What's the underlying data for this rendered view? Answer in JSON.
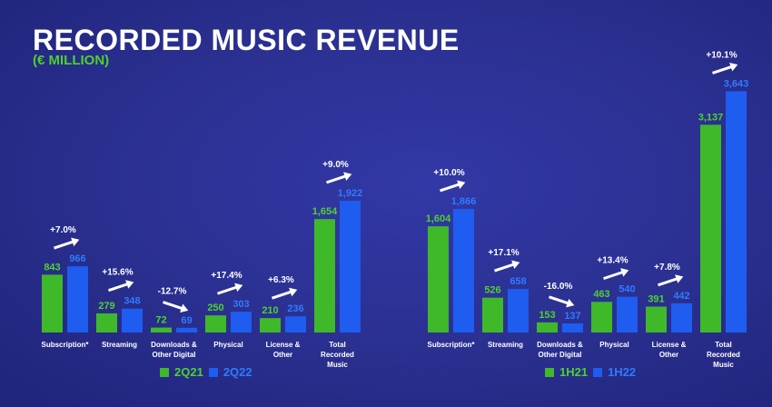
{
  "header": {
    "title": "RECORDED MUSIC REVENUE",
    "subtitle": "(€ MILLION)"
  },
  "colors": {
    "series_a": "#3fb82a",
    "series_b": "#1f5cf0",
    "label_a": "#4fd12e",
    "label_b": "#2f7bff",
    "text": "#ffffff"
  },
  "chart_data": [
    {
      "type": "bar",
      "categories": [
        "Subscription*",
        "Streaming",
        "Downloads & Other Digital",
        "Physical",
        "License & Other",
        "Total Recorded Music"
      ],
      "category_lines": [
        [
          "Subscription*"
        ],
        [
          "Streaming"
        ],
        [
          "Downloads &",
          "Other Digital"
        ],
        [
          "Physical"
        ],
        [
          "License &",
          "Other"
        ],
        [
          "Total",
          "Recorded",
          "Music"
        ]
      ],
      "series": [
        {
          "name": "2Q21",
          "values": [
            843,
            279,
            72,
            250,
            210,
            1654
          ]
        },
        {
          "name": "2Q22",
          "values": [
            966,
            348,
            69,
            303,
            236,
            1922
          ]
        }
      ],
      "value_labels": [
        [
          "843",
          "279",
          "72",
          "250",
          "210",
          "1,654"
        ],
        [
          "966",
          "348",
          "69",
          "303",
          "236",
          "1,922"
        ]
      ],
      "growth": [
        "+7.0%",
        "+15.6%",
        "-12.7%",
        "+17.4%",
        "+6.3%",
        "+9.0%"
      ],
      "legend": [
        "2Q21",
        "2Q22"
      ]
    },
    {
      "type": "bar",
      "categories": [
        "Subscription*",
        "Streaming",
        "Downloads & Other Digital",
        "Physical",
        "License & Other",
        "Total Recorded Music"
      ],
      "category_lines": [
        [
          "Subscription*"
        ],
        [
          "Streaming"
        ],
        [
          "Downloads &",
          "Other Digital"
        ],
        [
          "Physical"
        ],
        [
          "License &",
          "Other"
        ],
        [
          "Total",
          "Recorded",
          "Music"
        ]
      ],
      "series": [
        {
          "name": "1H21",
          "values": [
            1604,
            526,
            153,
            463,
            391,
            3137
          ]
        },
        {
          "name": "1H22",
          "values": [
            1866,
            658,
            137,
            540,
            442,
            3643
          ]
        }
      ],
      "value_labels": [
        [
          "1,604",
          "526",
          "153",
          "463",
          "391",
          "3,137"
        ],
        [
          "1,866",
          "658",
          "137",
          "540",
          "442",
          "3,643"
        ]
      ],
      "growth": [
        "+10.0%",
        "+17.1%",
        "-16.0%",
        "+13.4%",
        "+7.8%",
        "+10.1%"
      ],
      "legend": [
        "1H21",
        "1H22"
      ]
    }
  ]
}
